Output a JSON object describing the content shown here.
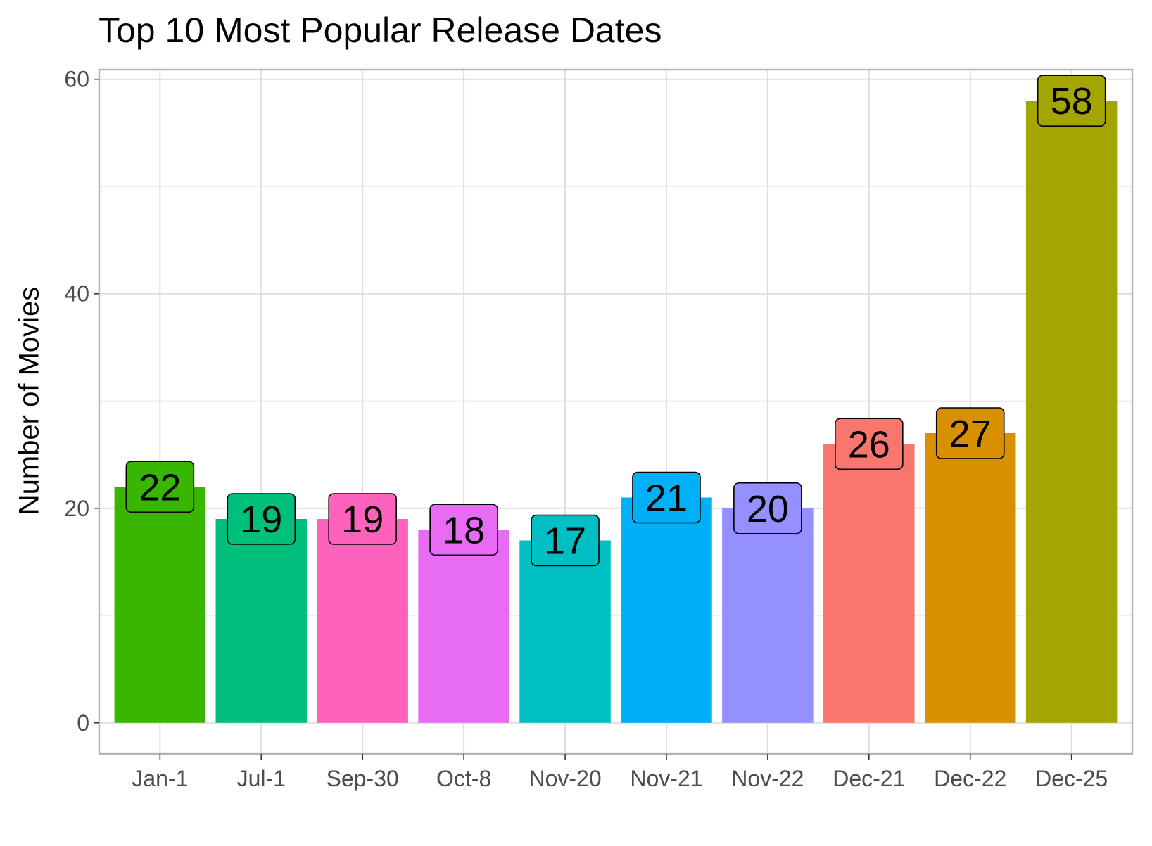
{
  "chart_data": {
    "type": "bar",
    "title": "Top 10 Most Popular Release Dates",
    "xlabel": "",
    "ylabel": "Number of Movies",
    "categories": [
      "Jan-1",
      "Jul-1",
      "Sep-30",
      "Oct-8",
      "Nov-20",
      "Nov-21",
      "Nov-22",
      "Dec-21",
      "Dec-22",
      "Dec-25"
    ],
    "values": [
      22,
      19,
      19,
      18,
      17,
      21,
      20,
      26,
      27,
      58
    ],
    "colors": [
      "#39B600",
      "#00BF7D",
      "#FF62BC",
      "#E76BF3",
      "#00BFC4",
      "#00B0F6",
      "#9590FF",
      "#F8766D",
      "#D89000",
      "#A3A500"
    ],
    "ylim": [
      -2.9,
      60.9
    ],
    "y_ticks": [
      0,
      20,
      40,
      60
    ],
    "y_minor_ticks": [
      10,
      30,
      50
    ],
    "grid": true,
    "legend": "none",
    "data_labels": true
  }
}
